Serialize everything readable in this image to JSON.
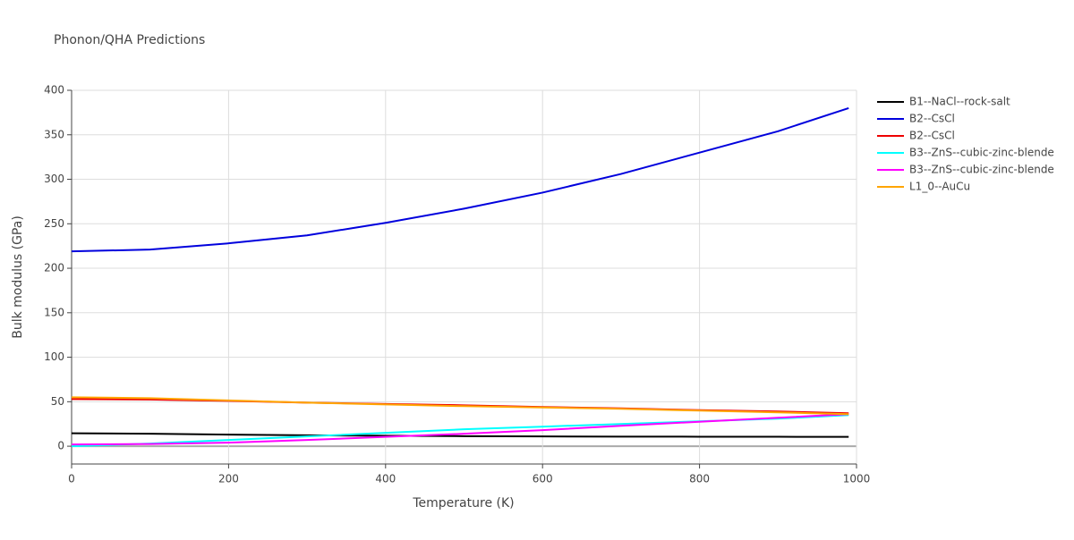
{
  "chart_data": {
    "type": "line",
    "title": "Phonon/QHA Predictions",
    "x_label": "Temperature (K)",
    "y_label": "Bulk modulus (GPa)",
    "x": [
      0,
      100,
      200,
      300,
      400,
      500,
      600,
      700,
      800,
      900,
      990
    ],
    "series": [
      {
        "name": "B1--NaCl--rock-salt",
        "color": "#000000",
        "values": [
          14.5,
          14,
          13,
          12.3,
          11.8,
          11.3,
          11,
          10.8,
          10.7,
          10.6,
          10.5
        ]
      },
      {
        "name": "B2--CsCl",
        "color": "#0000dd",
        "values": [
          219,
          221,
          228,
          237,
          251,
          267,
          285,
          306,
          330,
          354,
          380
        ]
      },
      {
        "name": "B2--CsCl",
        "color": "#ee0000",
        "values": [
          53,
          52.5,
          51,
          49,
          47.5,
          46,
          44,
          42.5,
          40.5,
          39,
          37
        ]
      },
      {
        "name": "B3--ZnS--cubic-zinc-blende",
        "color": "#00ffff",
        "values": [
          0,
          3,
          7,
          11,
          15,
          19,
          22,
          25,
          28,
          31,
          35
        ]
      },
      {
        "name": "B3--ZnS--cubic-zinc-blende",
        "color": "#ff00ff",
        "values": [
          2,
          2.5,
          4,
          7,
          10.5,
          14,
          18,
          23,
          27.5,
          32,
          36
        ]
      },
      {
        "name": "L1_0--AuCu",
        "color": "#ffa500",
        "values": [
          55,
          54,
          51.5,
          49,
          47,
          45,
          43.5,
          42,
          40,
          38,
          36
        ]
      }
    ],
    "xlim": [
      0,
      1000
    ],
    "xticks": [
      0,
      200,
      400,
      600,
      800,
      1000
    ],
    "ylim": [
      -20,
      400
    ],
    "yticks": [
      0,
      50,
      100,
      150,
      200,
      250,
      300,
      350,
      400
    ],
    "grid": true,
    "legend": "right"
  }
}
